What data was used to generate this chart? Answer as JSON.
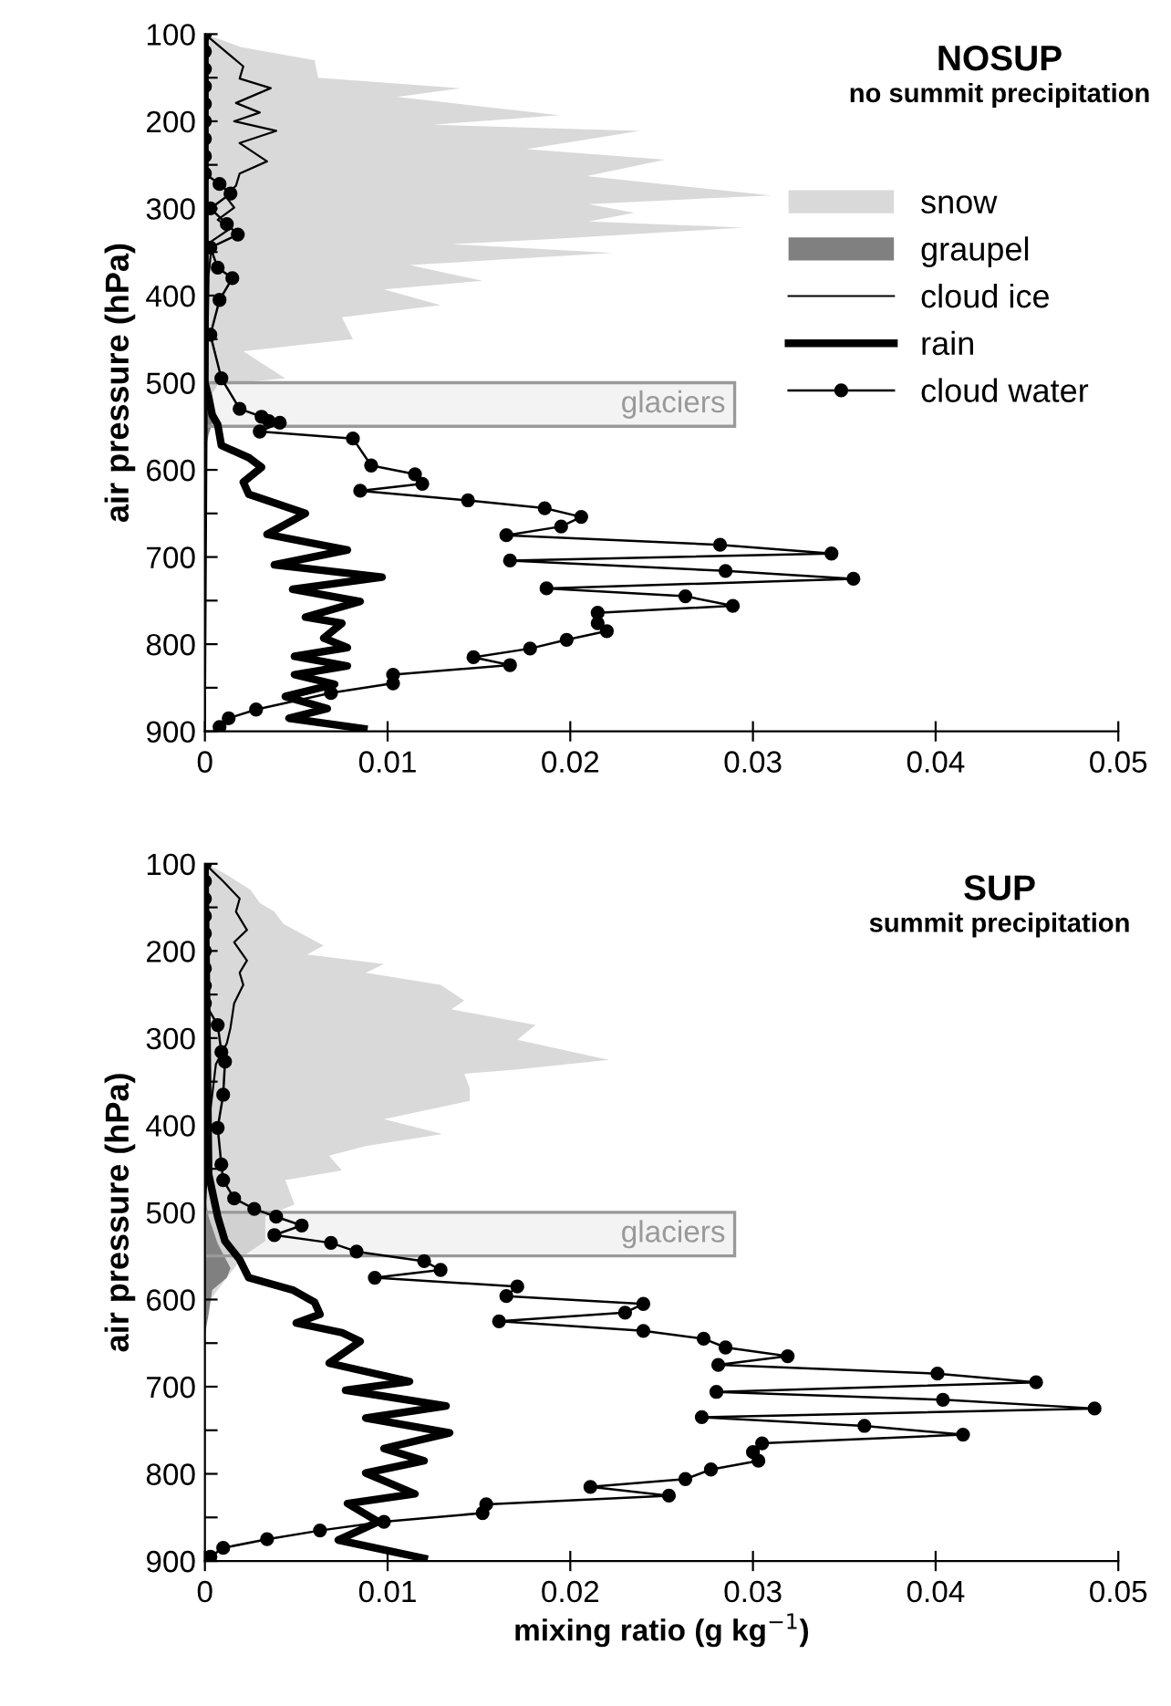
{
  "chart_data": [
    {
      "type": "area",
      "title": "NOSUP",
      "subtitle": "no summit precipitation",
      "ylabel": "air pressure (hPa)",
      "xlim": [
        0,
        0.05
      ],
      "xticks": [
        0,
        0.01,
        0.02,
        0.03,
        0.04,
        0.05
      ],
      "ylim": [
        900,
        100
      ],
      "yticks": [
        100,
        {
          "value": 150,
          "label": null
        },
        200,
        {
          "value": 250,
          "label": null
        },
        300,
        {
          "value": 350,
          "label": null
        },
        400,
        {
          "value": 450,
          "label": null
        },
        500,
        {
          "value": 550,
          "label": null
        },
        600,
        {
          "value": 650,
          "label": null
        },
        700,
        {
          "value": 750,
          "label": null
        },
        800,
        {
          "value": 850,
          "label": null
        },
        900
      ],
      "grid": false,
      "legend": "right",
      "bands": [
        {
          "axis": "y",
          "from": 500,
          "to": 550,
          "label": "glaciers",
          "color": "#999999"
        }
      ],
      "series": [
        {
          "name": "snow",
          "color": "#d9d9d9",
          "x": [
            0,
            0.002,
            0.006,
            0.0062,
            0.014,
            0.0105,
            0.0194,
            0.0125,
            0.0238,
            0.0176,
            0.0252,
            0.0209,
            0.031,
            0.021,
            0.0235,
            0.021,
            0.0295,
            0.019,
            0.0135,
            0.0223,
            0.0112,
            0.0152,
            0.0098,
            0.0129,
            0.0075,
            0.0081,
            0.0021,
            0.0044,
            0.0007,
            0.0002,
            0
          ],
          "values": [
            100,
            115,
            130,
            150,
            162,
            172,
            193,
            204,
            211,
            232,
            244,
            263,
            285,
            295,
            305,
            315,
            322,
            335,
            341,
            351,
            365,
            383,
            393,
            411,
            425,
            450,
            464,
            495,
            502,
            520,
            550
          ]
        },
        {
          "name": "graupel",
          "color": "#808080",
          "x": [
            0,
            0.0003,
            0.0005,
            0.0002,
            0
          ],
          "values": [
            480,
            510,
            540,
            560,
            580
          ]
        },
        {
          "name": "cloud ice",
          "type": "line",
          "color": "#000000",
          "marker": "none",
          "x": [
            0,
            0.0021,
            0.0019,
            0.0036,
            0.0017,
            0.003,
            0.0016,
            0.0039,
            0.0019,
            0.0034,
            0.0019,
            0.0017,
            0.0011,
            0.0016,
            0.0007,
            0.0014,
            0.0004,
            0.0002,
            0.0001,
            0
          ],
          "values": [
            100,
            137,
            151,
            162,
            179,
            190,
            200,
            211,
            225,
            246,
            260,
            274,
            285,
            299,
            313,
            323,
            337,
            376,
            502,
            900
          ]
        },
        {
          "name": "rain",
          "type": "line",
          "color": "#000000",
          "marker": "none",
          "x": [
            0,
            0,
            0.0002,
            0.0004,
            0.0007,
            0.0009,
            0.0024,
            0.0031,
            0.0021,
            0.0024,
            0.0055,
            0.0034,
            0.0078,
            0.0038,
            0.0097,
            0.0048,
            0.0085,
            0.0055,
            0.0075,
            0.0065,
            0.0078,
            0.0049,
            0.0078,
            0.0049,
            0.0071,
            0.0044,
            0.0067,
            0.0046,
            0.0087
          ],
          "values": [
            100,
            500,
            516,
            537,
            548,
            572,
            586,
            597,
            614,
            628,
            650,
            674,
            692,
            709,
            723,
            737,
            751,
            769,
            776,
            793,
            804,
            814,
            825,
            835,
            846,
            860,
            874,
            885,
            897
          ]
        },
        {
          "name": "cloud water",
          "type": "line",
          "color": "#000000",
          "marker": "circle",
          "x": [
            0,
            0,
            0,
            0,
            0,
            0,
            0,
            0,
            0,
            0.0008,
            0.0014,
            0.0003,
            0.0012,
            0.0018,
            0.0003,
            0.0007,
            0.0015,
            0.0008,
            0.0003,
            0.0009,
            0.0019,
            0.0031,
            0.0035,
            0.0041,
            0.003,
            0.0081,
            0.0091,
            0.0115,
            0.0119,
            0.0085,
            0.0144,
            0.0186,
            0.0206,
            0.0195,
            0.0165,
            0.0282,
            0.0343,
            0.0167,
            0.0285,
            0.0355,
            0.0187,
            0.0263,
            0.0289,
            0.0215,
            0.0215,
            0.022,
            0.0198,
            0.0178,
            0.0147,
            0.0167,
            0.0103,
            0.0103,
            0.0069,
            0.0028,
            0.0013,
            0.0008
          ],
          "values": [
            100,
            120,
            140,
            160,
            180,
            200,
            220,
            240,
            260,
            272,
            283,
            300,
            318,
            330,
            345,
            368,
            380,
            405,
            445,
            495,
            530,
            539,
            544,
            546,
            556,
            564,
            595,
            605,
            616,
            624,
            635,
            644,
            654,
            665,
            675,
            686,
            696,
            704,
            716,
            725,
            736,
            745,
            756,
            764,
            776,
            785,
            795,
            805,
            815,
            824,
            835,
            845,
            856,
            875,
            885,
            895
          ]
        }
      ]
    },
    {
      "type": "area",
      "title": "SUP",
      "subtitle": "summit precipitation",
      "xlabel": "mixing ratio (g kg$^{−1}$)",
      "ylabel": "air pressure (hPa)",
      "xlim": [
        0,
        0.05
      ],
      "xticks": [
        0,
        0.01,
        0.02,
        0.03,
        0.04,
        0.05
      ],
      "ylim": [
        900,
        100
      ],
      "yticks": [
        100,
        {
          "value": 150,
          "label": null
        },
        200,
        {
          "value": 250,
          "label": null
        },
        300,
        {
          "value": 350,
          "label": null
        },
        400,
        {
          "value": 450,
          "label": null
        },
        500,
        {
          "value": 550,
          "label": null
        },
        600,
        {
          "value": 650,
          "label": null
        },
        700,
        {
          "value": 750,
          "label": null
        },
        800,
        {
          "value": 850,
          "label": null
        },
        900
      ],
      "grid": false,
      "bands": [
        {
          "axis": "y",
          "from": 500,
          "to": 550,
          "label": "glaciers",
          "color": "#999999"
        }
      ],
      "series": [
        {
          "color": "#d9d9d9",
          "x": [
            0,
            0.001,
            0.0025,
            0.003,
            0.0038,
            0.0043,
            0.0065,
            0.0056,
            0.0098,
            0.0088,
            0.0129,
            0.0142,
            0.0135,
            0.0181,
            0.0171,
            0.0221,
            0.0171,
            0.0142,
            0.0145,
            0.0145,
            0.0098,
            0.013,
            0.0088,
            0.0068,
            0.0075,
            0.0044,
            0.0049,
            0.0033,
            0.0033,
            0.0021,
            0.0002,
            0
          ],
          "values": [
            100,
            110,
            130,
            145,
            155,
            169,
            194,
            204,
            215,
            225,
            239,
            257,
            267,
            285,
            302,
            325,
            336,
            341,
            358,
            372,
            393,
            410,
            424,
            435,
            452,
            463,
            491,
            505,
            533,
            550,
            603,
            620
          ]
        },
        {
          "color": "#808080",
          "x": [
            0,
            0.0002,
            0.0007,
            0.0014,
            0.0012,
            0.0004,
            0.0002,
            0
          ],
          "values": [
            480,
            505,
            536,
            564,
            575,
            589,
            617,
            640
          ]
        },
        {
          "type": "line",
          "color": "#000000",
          "marker": "none",
          "x": [
            0,
            0.001,
            0.0019,
            0.0017,
            0.0023,
            0.0016,
            0.0023,
            0.0019,
            0.0021,
            0.0016,
            0.0014,
            0.0012,
            0.0006,
            0.0002,
            0
          ],
          "values": [
            100,
            120,
            140,
            155,
            176,
            190,
            211,
            225,
            239,
            260,
            288,
            306,
            330,
            400,
            500
          ]
        },
        {
          "type": "line",
          "color": "#000000",
          "marker": "none",
          "x": [
            0,
            0.0002,
            0.0002,
            0.0007,
            0.0011,
            0.0019,
            0.0024,
            0.0048,
            0.006,
            0.0063,
            0.005,
            0.0075,
            0.0085,
            0.0068,
            0.0112,
            0.0077,
            0.0132,
            0.0088,
            0.0134,
            0.0098,
            0.012,
            0.0088,
            0.0115,
            0.0078,
            0.0095,
            0.0073,
            0.012
          ],
          "values": [
            100,
            450,
            456,
            505,
            533,
            554,
            575,
            589,
            603,
            617,
            627,
            638,
            648,
            673,
            694,
            704,
            722,
            736,
            753,
            771,
            785,
            799,
            823,
            834,
            855,
            876,
            897
          ]
        },
        {
          "type": "line",
          "color": "#000000",
          "marker": "circle",
          "x": [
            0,
            0,
            0,
            0,
            0,
            0,
            0,
            0,
            0,
            0.0007,
            0.0009,
            0.0011,
            0.001,
            0.0007,
            0.0009,
            0.001,
            0.0016,
            0.0027,
            0.0039,
            0.0053,
            0.0038,
            0.0069,
            0.0083,
            0.012,
            0.0129,
            0.0093,
            0.0171,
            0.0165,
            0.024,
            0.023,
            0.0161,
            0.024,
            0.0273,
            0.0285,
            0.0319,
            0.0281,
            0.0401,
            0.0455,
            0.028,
            0.0404,
            0.0487,
            0.0272,
            0.0361,
            0.0415,
            0.0305,
            0.03,
            0.0303,
            0.0277,
            0.0263,
            0.0211,
            0.0254,
            0.0154,
            0.0152,
            0.0098,
            0.0063,
            0.0034,
            0.001,
            0.0003
          ],
          "values": [
            100,
            120,
            140,
            160,
            180,
            200,
            220,
            240,
            260,
            285,
            316,
            327,
            365,
            403,
            445,
            463,
            484,
            496,
            505,
            515,
            526,
            535,
            545,
            556,
            566,
            575,
            585,
            596,
            605,
            615,
            625,
            636,
            645,
            655,
            665,
            675,
            685,
            695,
            706,
            715,
            725,
            735,
            745,
            755,
            765,
            775,
            785,
            795,
            806,
            815,
            825,
            835,
            845,
            855,
            865,
            875,
            885,
            895
          ]
        }
      ]
    }
  ]
}
